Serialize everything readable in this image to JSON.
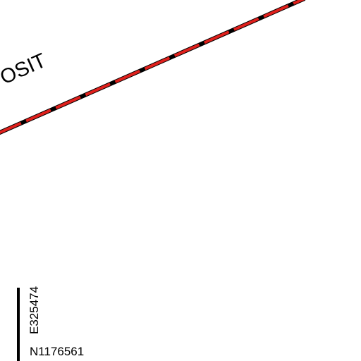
{
  "map": {
    "line_label": "POSIT",
    "grid": {
      "easting": "E325474",
      "northing": "N1176561"
    }
  }
}
